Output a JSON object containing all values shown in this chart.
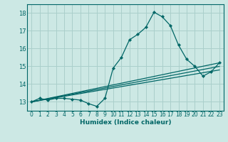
{
  "title": "",
  "xlabel": "Humidex (Indice chaleur)",
  "ylabel": "",
  "bg_color": "#cce8e4",
  "grid_color": "#aacfcb",
  "line_color": "#006666",
  "xlim": [
    -0.5,
    23.5
  ],
  "ylim": [
    12.5,
    18.5
  ],
  "yticks": [
    13,
    14,
    15,
    16,
    17,
    18
  ],
  "xticks": [
    0,
    1,
    2,
    3,
    4,
    5,
    6,
    7,
    8,
    9,
    10,
    11,
    12,
    13,
    14,
    15,
    16,
    17,
    18,
    19,
    20,
    21,
    22,
    23
  ],
  "main_x": [
    0,
    1,
    2,
    3,
    4,
    5,
    6,
    7,
    8,
    9,
    10,
    11,
    12,
    13,
    14,
    15,
    16,
    17,
    18,
    19,
    20,
    21,
    22,
    23
  ],
  "main_y": [
    13.0,
    13.2,
    13.1,
    13.2,
    13.2,
    13.15,
    13.1,
    12.9,
    12.75,
    13.2,
    14.9,
    15.5,
    16.5,
    16.8,
    17.2,
    18.05,
    17.8,
    17.3,
    16.2,
    15.4,
    15.0,
    14.45,
    14.7,
    15.2
  ],
  "line2_x": [
    0,
    23
  ],
  "line2_y": [
    13.0,
    15.2
  ],
  "line3_x": [
    0,
    23
  ],
  "line3_y": [
    13.0,
    15.0
  ],
  "line4_x": [
    0,
    23
  ],
  "line4_y": [
    13.0,
    14.8
  ],
  "xlabel_fontsize": 6.5,
  "tick_fontsize": 5.5
}
